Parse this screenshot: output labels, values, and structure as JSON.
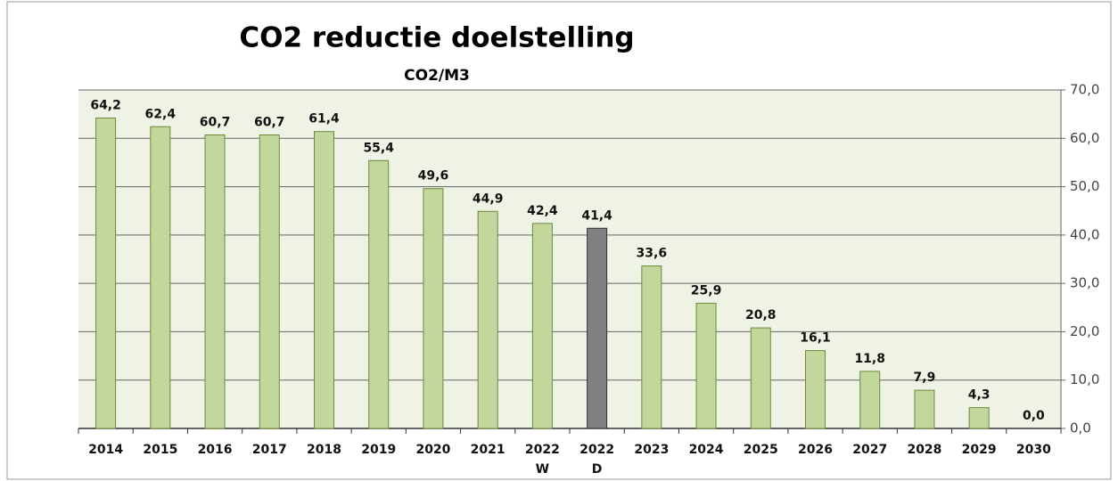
{
  "chart_data": {
    "type": "bar",
    "title": "CO2 reductie doelstelling",
    "subtitle": "CO2/M3",
    "categories": [
      "2014",
      "2015",
      "2016",
      "2017",
      "2018",
      "2019",
      "2020",
      "2021",
      "2022 W",
      "2022 D",
      "2023",
      "2024",
      "2025",
      "2026",
      "2027",
      "2028",
      "2029",
      "2030"
    ],
    "values": [
      64.2,
      62.4,
      60.7,
      60.7,
      61.4,
      55.4,
      49.6,
      44.9,
      42.4,
      41.4,
      33.6,
      25.9,
      20.8,
      16.1,
      11.8,
      7.9,
      4.3,
      0.0
    ],
    "value_labels": [
      "64,2",
      "62,4",
      "60,7",
      "60,7",
      "61,4",
      "55,4",
      "49,6",
      "44,9",
      "42,4",
      "41,4",
      "33,6",
      "25,9",
      "20,8",
      "16,1",
      "11,8",
      "7,9",
      "4,3",
      "0,0"
    ],
    "colors": [
      "#c3d69b",
      "#c3d69b",
      "#c3d69b",
      "#c3d69b",
      "#c3d69b",
      "#c3d69b",
      "#c3d69b",
      "#c3d69b",
      "#c3d69b",
      "#808080",
      "#c3d69b",
      "#c3d69b",
      "#c3d69b",
      "#c3d69b",
      "#c3d69b",
      "#c3d69b",
      "#c3d69b",
      "#c3d69b"
    ],
    "ylim": [
      0,
      70
    ],
    "yticks": [
      {
        "value": 0,
        "label": "0,0"
      },
      {
        "value": 10,
        "label": "10,0"
      },
      {
        "value": 20,
        "label": "20,0"
      },
      {
        "value": 30,
        "label": "30,0"
      },
      {
        "value": 40,
        "label": "40,0"
      },
      {
        "value": 50,
        "label": "50,0"
      },
      {
        "value": 60,
        "label": "60,0"
      },
      {
        "value": 70,
        "label": "70,0"
      }
    ],
    "grid": true,
    "y_axis_side": "right"
  }
}
